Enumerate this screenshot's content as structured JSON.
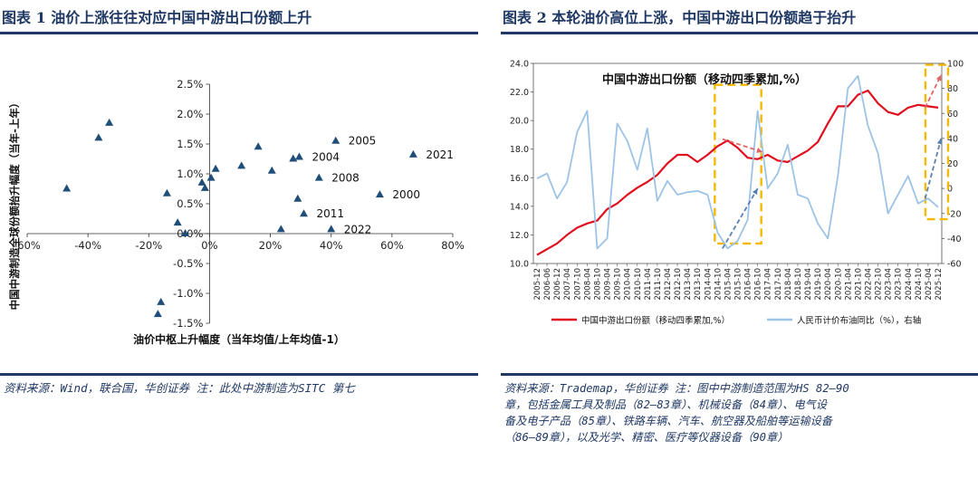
{
  "left": {
    "title": "图表 1 油价上涨往往对应中国中游出口份额上升",
    "source": "资料来源：Wind，联合国，华创证券 注：此处中游制造为SITC 第七",
    "chart_data": {
      "type": "scatter",
      "xlabel": "油价中枢上升幅度（当年均值/上年均值-1）",
      "ylabel": "中国中游制造全球份额抬升幅度（当年-上年）",
      "xlim": [
        -0.6,
        0.8
      ],
      "ylim": [
        -0.015,
        0.025
      ],
      "x_ticks": [
        "-60%",
        "-40%",
        "-20%",
        "0%",
        "20%",
        "40%",
        "60%",
        "80%"
      ],
      "y_ticks": [
        "-1.5%",
        "-1.0%",
        "-0.5%",
        "0.0%",
        "0.5%",
        "1.0%",
        "1.5%",
        "2.0%",
        "2.5%"
      ],
      "marker_color": "#1f4e79",
      "points": [
        {
          "x": -0.47,
          "y": 0.0075,
          "label": ""
        },
        {
          "x": -0.365,
          "y": 0.016,
          "label": ""
        },
        {
          "x": -0.33,
          "y": 0.0185,
          "label": ""
        },
        {
          "x": -0.14,
          "y": 0.0067,
          "label": ""
        },
        {
          "x": -0.105,
          "y": 0.0018,
          "label": ""
        },
        {
          "x": -0.08,
          "y": 0.0,
          "label": ""
        },
        {
          "x": -0.16,
          "y": -0.0115,
          "label": ""
        },
        {
          "x": -0.17,
          "y": -0.0135,
          "label": ""
        },
        {
          "x": -0.025,
          "y": 0.0085,
          "label": ""
        },
        {
          "x": -0.015,
          "y": 0.0076,
          "label": ""
        },
        {
          "x": 0.005,
          "y": 0.0093,
          "label": ""
        },
        {
          "x": 0.02,
          "y": 0.0108,
          "label": ""
        },
        {
          "x": 0.105,
          "y": 0.0113,
          "label": ""
        },
        {
          "x": 0.16,
          "y": 0.0145,
          "label": ""
        },
        {
          "x": 0.205,
          "y": 0.0105,
          "label": ""
        },
        {
          "x": 0.235,
          "y": 0.0007,
          "label": ""
        },
        {
          "x": 0.275,
          "y": 0.0125,
          "label": ""
        },
        {
          "x": 0.295,
          "y": 0.0128,
          "label": "2004"
        },
        {
          "x": 0.29,
          "y": 0.0058,
          "label": ""
        },
        {
          "x": 0.31,
          "y": 0.0033,
          "label": "2011"
        },
        {
          "x": 0.36,
          "y": 0.0093,
          "label": "2008"
        },
        {
          "x": 0.4,
          "y": 0.0007,
          "label": "2022"
        },
        {
          "x": 0.415,
          "y": 0.0155,
          "label": "2005"
        },
        {
          "x": 0.56,
          "y": 0.0065,
          "label": "2000"
        },
        {
          "x": 0.67,
          "y": 0.0132,
          "label": "2021"
        }
      ]
    }
  },
  "right": {
    "title": "图表 2 本轮油价高位上涨，中国中游出口份额趋于抬升",
    "source_lines": [
      "资料来源：Trademap，华创证券 注：图中中游制造范围为HS 82—90",
      "章，包括金属工具及制品（82—83章）、机械设备（84章）、电气设",
      "备及电子产品（85章）、铁路车辆、汽车、航空器及船舶等运输设备",
      "（86—89章），以及光学、精密、医疗等仪器设备（90章）"
    ],
    "chart_data": {
      "type": "line",
      "title": "中国中游出口份额（移动四季累加,%）",
      "x_labels": [
        "2005-12",
        "2006-06",
        "2006-12",
        "2007-04",
        "2007-10",
        "2008-04",
        "2008-10",
        "2009-04",
        "2009-10",
        "2010-04",
        "2010-10",
        "2011-04",
        "2011-10",
        "2012-04",
        "2012-10",
        "2013-04",
        "2013-10",
        "2014-04",
        "2014-10",
        "2015-04",
        "2015-10",
        "2016-04",
        "2016-10",
        "2017-04",
        "2017-10",
        "2018-04",
        "2018-10",
        "2019-04",
        "2019-10",
        "2020-04",
        "2020-10",
        "2021-04",
        "2021-10",
        "2022-04",
        "2022-10",
        "2023-04",
        "2023-10",
        "2024-04",
        "2024-10",
        "2025-04",
        "2025-12"
      ],
      "ylim_left": [
        10.0,
        24.0
      ],
      "yticks_left": [
        "10.0",
        "12.0",
        "14.0",
        "16.0",
        "18.0",
        "20.0",
        "22.0",
        "24.0"
      ],
      "ylim_right": [
        -60,
        100
      ],
      "yticks_right": [
        "-60",
        "-40",
        "-20",
        "0",
        "20",
        "40",
        "60",
        "80",
        "100"
      ],
      "series": [
        {
          "name": "中国中游出口份额（移动四季累加,%）",
          "axis": "left",
          "color": "#e0101e",
          "values": [
            10.6,
            11.0,
            11.4,
            12.0,
            12.5,
            12.8,
            13.0,
            13.8,
            14.2,
            14.8,
            15.3,
            15.7,
            16.2,
            17.0,
            17.6,
            17.6,
            17.1,
            17.6,
            18.2,
            18.6,
            18.1,
            17.4,
            17.3,
            17.6,
            17.2,
            17.1,
            17.5,
            17.9,
            18.5,
            19.8,
            21.0,
            21.0,
            21.8,
            22.1,
            21.2,
            20.6,
            20.4,
            20.9,
            21.1,
            21.0,
            20.9
          ]
        },
        {
          "name": "人民币计价布油同比（%），右轴",
          "axis": "right",
          "color": "#9dc3e6",
          "values": [
            8,
            12,
            -8,
            5,
            45,
            62,
            -48,
            -40,
            52,
            38,
            15,
            48,
            -10,
            6,
            -5,
            -3,
            -2,
            -5,
            -35,
            -48,
            -42,
            -25,
            62,
            0,
            12,
            35,
            -5,
            -8,
            -28,
            -40,
            10,
            80,
            90,
            50,
            28,
            -20,
            -5,
            10,
            -12,
            -8,
            -15
          ]
        }
      ],
      "annotations": {
        "box_color": "#f5b800",
        "arrow_red": "#e06666",
        "arrow_blue": "#5b7fb5"
      }
    }
  }
}
